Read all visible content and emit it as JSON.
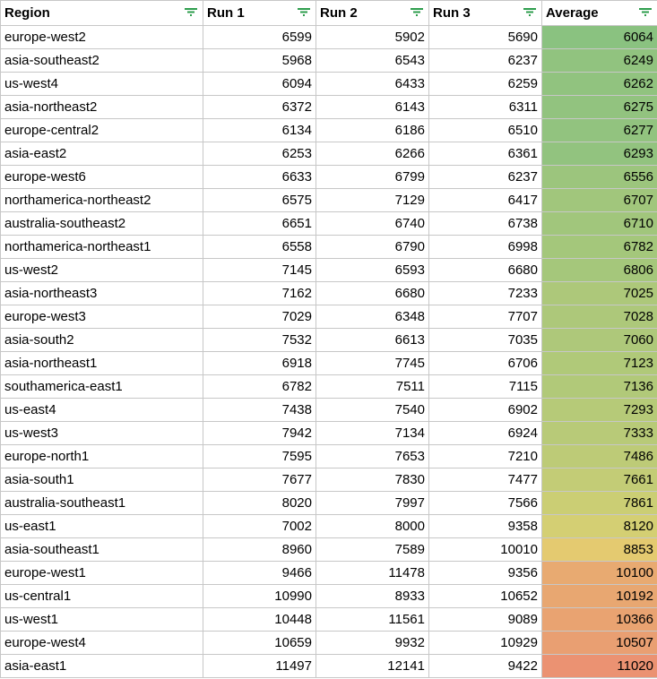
{
  "headers": {
    "region": "Region",
    "run1": "Run 1",
    "run2": "Run 2",
    "run3": "Run 3",
    "average": "Average"
  },
  "header_icon": "filter-icon",
  "colors": {
    "good": "#8ac280",
    "mid": "#e3d270",
    "bad": "#eb9272",
    "grid": "#c7c7c7",
    "filter_icon": "#2e9e4d"
  },
  "rows": [
    {
      "region": "europe-west2",
      "run1": 6599,
      "run2": 5902,
      "run3": 5690,
      "average": 6064
    },
    {
      "region": "asia-southeast2",
      "run1": 5968,
      "run2": 6543,
      "run3": 6237,
      "average": 6249
    },
    {
      "region": "us-west4",
      "run1": 6094,
      "run2": 6433,
      "run3": 6259,
      "average": 6262
    },
    {
      "region": "asia-northeast2",
      "run1": 6372,
      "run2": 6143,
      "run3": 6311,
      "average": 6275
    },
    {
      "region": "europe-central2",
      "run1": 6134,
      "run2": 6186,
      "run3": 6510,
      "average": 6277
    },
    {
      "region": "asia-east2",
      "run1": 6253,
      "run2": 6266,
      "run3": 6361,
      "average": 6293
    },
    {
      "region": "europe-west6",
      "run1": 6633,
      "run2": 6799,
      "run3": 6237,
      "average": 6556
    },
    {
      "region": "northamerica-northeast2",
      "run1": 6575,
      "run2": 7129,
      "run3": 6417,
      "average": 6707
    },
    {
      "region": "australia-southeast2",
      "run1": 6651,
      "run2": 6740,
      "run3": 6738,
      "average": 6710
    },
    {
      "region": "northamerica-northeast1",
      "run1": 6558,
      "run2": 6790,
      "run3": 6998,
      "average": 6782
    },
    {
      "region": "us-west2",
      "run1": 7145,
      "run2": 6593,
      "run3": 6680,
      "average": 6806
    },
    {
      "region": "asia-northeast3",
      "run1": 7162,
      "run2": 6680,
      "run3": 7233,
      "average": 7025
    },
    {
      "region": "europe-west3",
      "run1": 7029,
      "run2": 6348,
      "run3": 7707,
      "average": 7028
    },
    {
      "region": "asia-south2",
      "run1": 7532,
      "run2": 6613,
      "run3": 7035,
      "average": 7060
    },
    {
      "region": "asia-northeast1",
      "run1": 6918,
      "run2": 7745,
      "run3": 6706,
      "average": 7123
    },
    {
      "region": "southamerica-east1",
      "run1": 6782,
      "run2": 7511,
      "run3": 7115,
      "average": 7136
    },
    {
      "region": "us-east4",
      "run1": 7438,
      "run2": 7540,
      "run3": 6902,
      "average": 7293
    },
    {
      "region": "us-west3",
      "run1": 7942,
      "run2": 7134,
      "run3": 6924,
      "average": 7333
    },
    {
      "region": "europe-north1",
      "run1": 7595,
      "run2": 7653,
      "run3": 7210,
      "average": 7486
    },
    {
      "region": "asia-south1",
      "run1": 7677,
      "run2": 7830,
      "run3": 7477,
      "average": 7661
    },
    {
      "region": "australia-southeast1",
      "run1": 8020,
      "run2": 7997,
      "run3": 7566,
      "average": 7861
    },
    {
      "region": "us-east1",
      "run1": 7002,
      "run2": 8000,
      "run3": 9358,
      "average": 8120
    },
    {
      "region": "asia-southeast1",
      "run1": 8960,
      "run2": 7589,
      "run3": 10010,
      "average": 8853
    },
    {
      "region": "europe-west1",
      "run1": 9466,
      "run2": 11478,
      "run3": 9356,
      "average": 10100
    },
    {
      "region": "us-central1",
      "run1": 10990,
      "run2": 8933,
      "run3": 10652,
      "average": 10192
    },
    {
      "region": "us-west1",
      "run1": 10448,
      "run2": 11561,
      "run3": 9089,
      "average": 10366
    },
    {
      "region": "europe-west4",
      "run1": 10659,
      "run2": 9932,
      "run3": 10929,
      "average": 10507
    },
    {
      "region": "asia-east1",
      "run1": 11497,
      "run2": 12141,
      "run3": 9422,
      "average": 11020
    }
  ]
}
